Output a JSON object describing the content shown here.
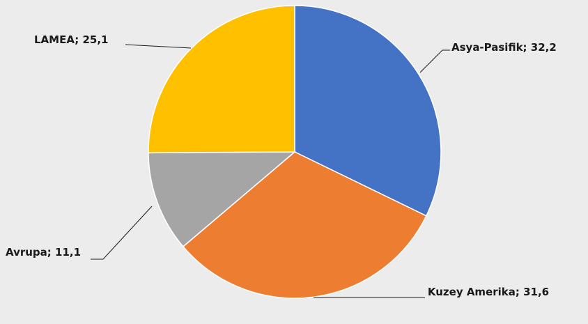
{
  "chart_data": {
    "type": "pie",
    "categories": [
      "Asya-Pasifik",
      "Kuzey Amerika",
      "Avrupa",
      "LAMEA"
    ],
    "values": [
      32.2,
      31.6,
      11.1,
      25.1
    ],
    "value_labels": [
      "Asya-Pasifik; 32,2",
      "Kuzey Amerika; 31,6",
      "Avrupa; 11,1",
      "LAMEA; 25,1"
    ],
    "colors": [
      "#4472c4",
      "#ed7d31",
      "#a5a5a5",
      "#ffc000"
    ]
  }
}
